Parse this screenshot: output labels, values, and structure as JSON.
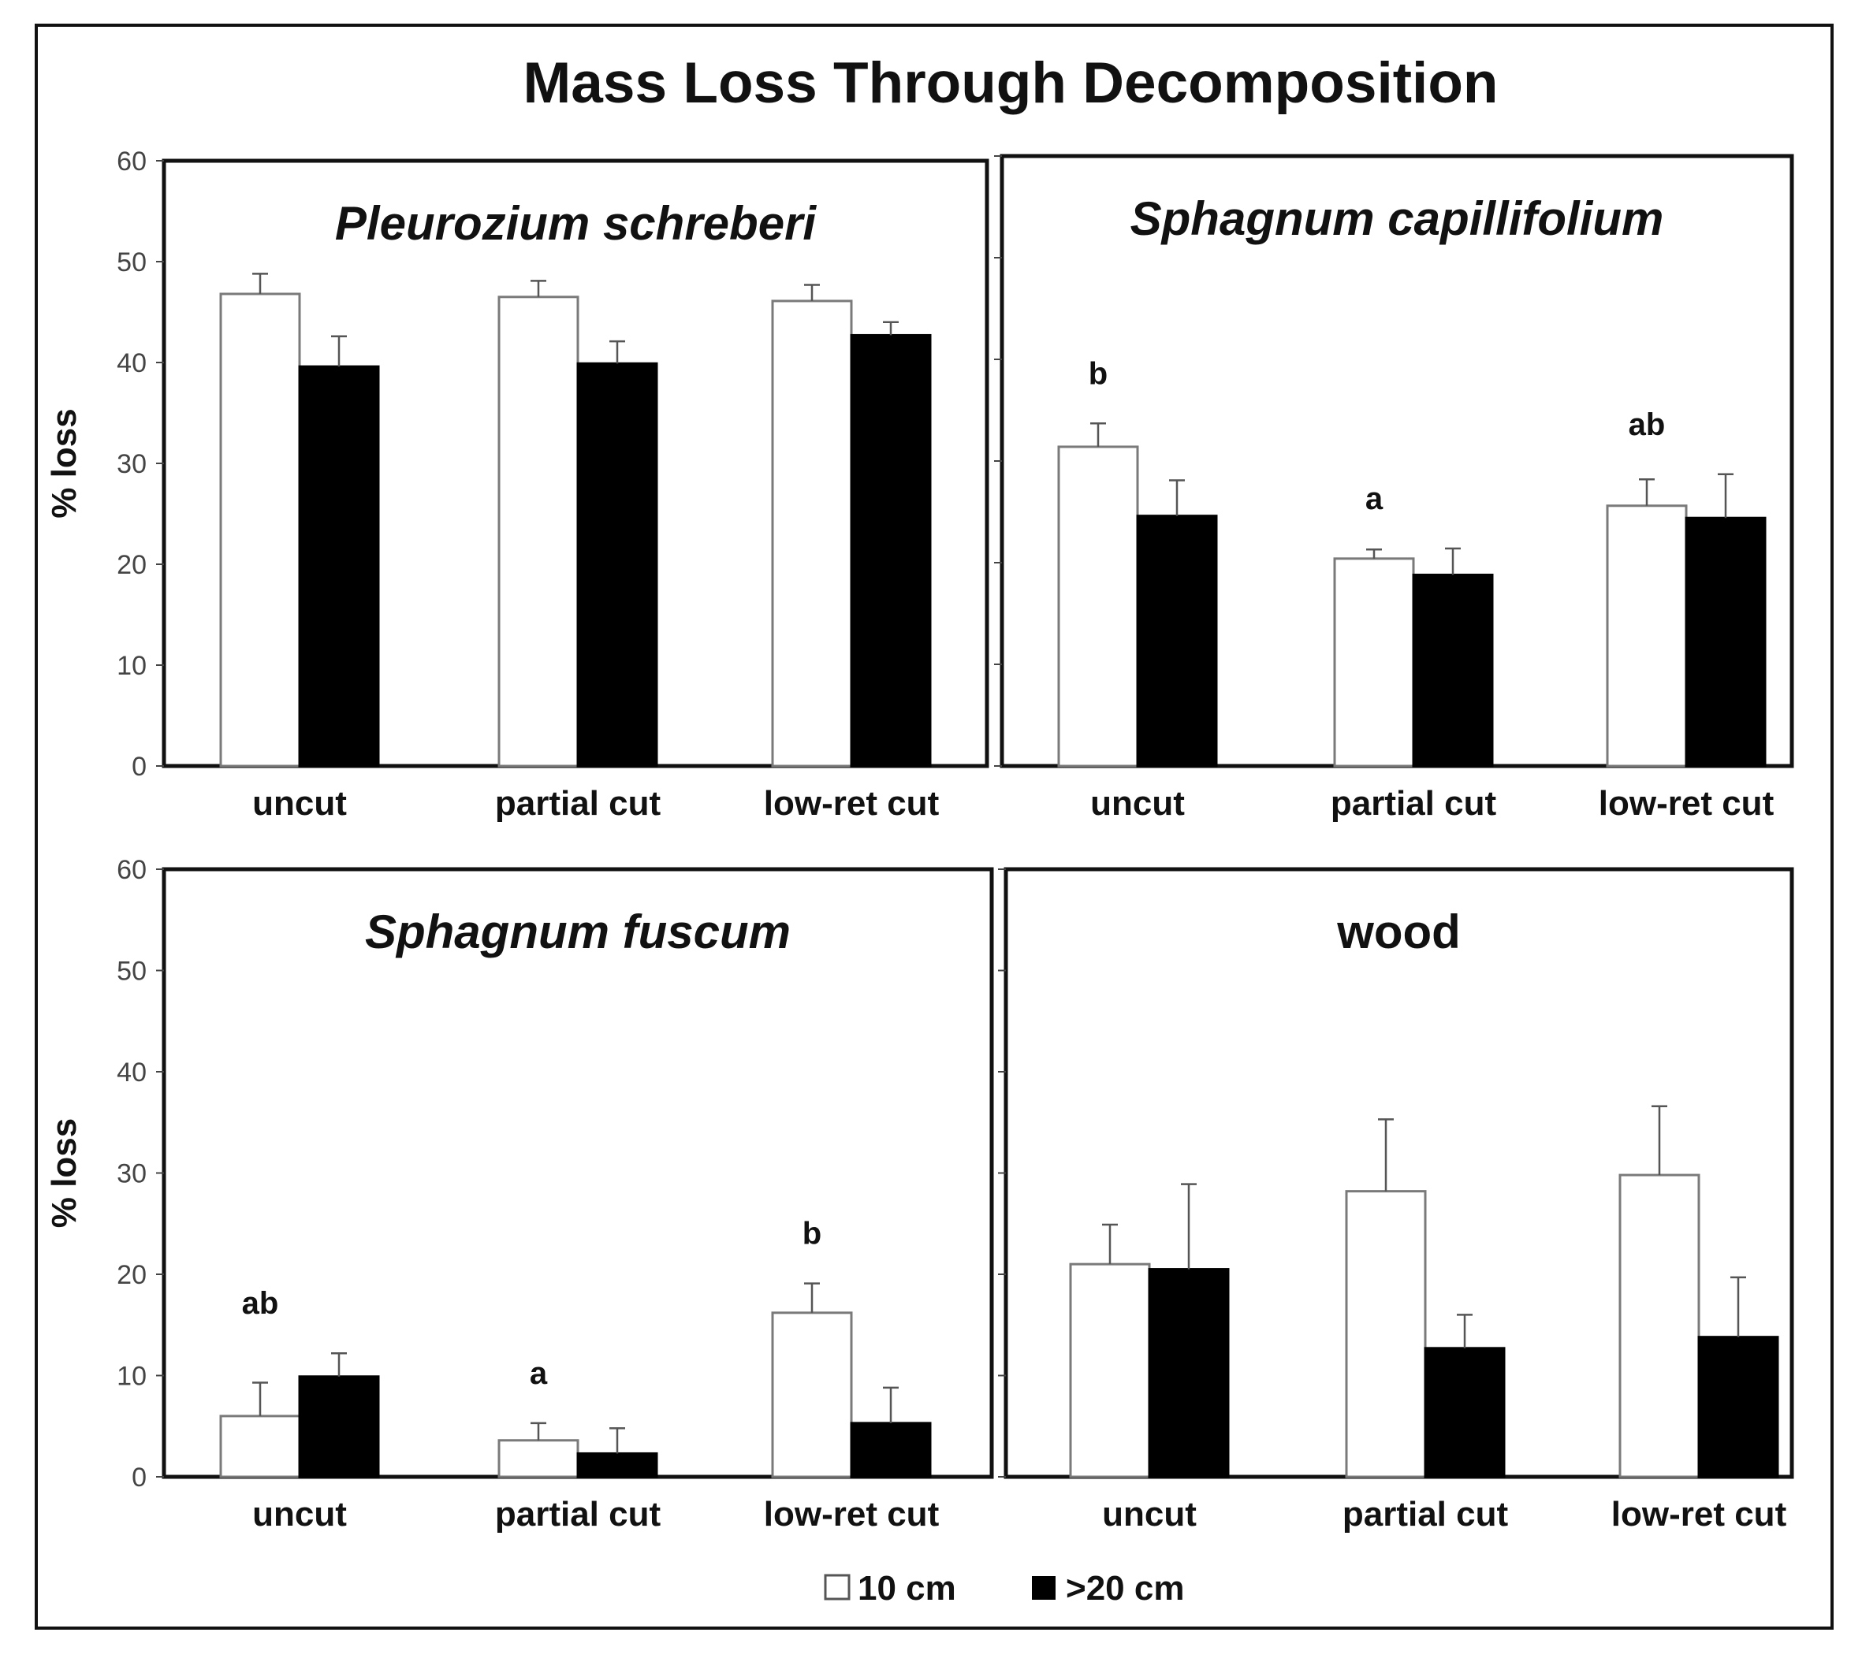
{
  "chart_data": {
    "title": "Mass Loss Through Decomposition",
    "type": "bar",
    "legend": {
      "placement": "bottom",
      "series": [
        {
          "name": "10 cm",
          "color": "#ffffff"
        },
        {
          "name": ">20 cm",
          "color": "#000000"
        }
      ]
    },
    "panels": [
      {
        "title": "Pleurozium schreberi",
        "italic": true,
        "categories": [
          "uncut",
          "partial cut",
          "low-ret cut"
        ],
        "ylabel": "% loss",
        "ylim": [
          0,
          60
        ],
        "yticks": [
          0,
          10,
          20,
          30,
          40,
          50,
          60
        ],
        "series": [
          {
            "name": "10 cm",
            "values": [
              46.8,
              46.5,
              46.1
            ],
            "errors": [
              2.0,
              1.6,
              1.6
            ]
          },
          {
            "name": ">20 cm",
            "values": [
              39.6,
              39.9,
              42.7
            ],
            "errors": [
              3.0,
              2.2,
              1.3
            ]
          }
        ],
        "significance": [
          "",
          "",
          ""
        ]
      },
      {
        "title": "Sphagnum capillifolium",
        "italic": true,
        "categories": [
          "uncut",
          "partial cut",
          "low-ret cut"
        ],
        "ylabel": "",
        "ylim": [
          0,
          60
        ],
        "yticks": [
          0,
          10,
          20,
          30,
          40,
          50,
          60
        ],
        "series": [
          {
            "name": "10 cm",
            "values": [
              31.4,
              20.4,
              25.6
            ],
            "errors": [
              2.3,
              0.9,
              2.6
            ]
          },
          {
            "name": ">20 cm",
            "values": [
              24.6,
              18.8,
              24.4
            ],
            "errors": [
              3.5,
              2.6,
              4.3
            ]
          }
        ],
        "significance": [
          "b",
          "a",
          "ab"
        ]
      },
      {
        "title": "Sphagnum fuscum",
        "italic": true,
        "categories": [
          "uncut",
          "partial cut",
          "low-ret cut"
        ],
        "ylabel": "% loss",
        "ylim": [
          0,
          60
        ],
        "yticks": [
          0,
          10,
          20,
          30,
          40,
          50,
          60
        ],
        "series": [
          {
            "name": "10 cm",
            "values": [
              6.0,
              3.6,
              16.2
            ],
            "errors": [
              3.3,
              1.7,
              2.9
            ]
          },
          {
            "name": ">20 cm",
            "values": [
              9.9,
              2.3,
              5.3
            ],
            "errors": [
              2.3,
              2.5,
              3.5
            ]
          }
        ],
        "significance": [
          "ab",
          "a",
          "b"
        ]
      },
      {
        "title": "wood",
        "italic": false,
        "categories": [
          "uncut",
          "partial cut",
          "low-ret cut"
        ],
        "ylabel": "",
        "ylim": [
          0,
          60
        ],
        "yticks": [
          0,
          10,
          20,
          30,
          40,
          50,
          60
        ],
        "series": [
          {
            "name": "10 cm",
            "values": [
              21.0,
              28.2,
              29.8
            ],
            "errors": [
              3.9,
              7.1,
              6.8
            ]
          },
          {
            "name": ">20 cm",
            "values": [
              20.5,
              12.7,
              13.8
            ],
            "errors": [
              8.4,
              3.3,
              5.9
            ]
          }
        ],
        "significance": [
          "",
          "",
          ""
        ]
      }
    ]
  }
}
